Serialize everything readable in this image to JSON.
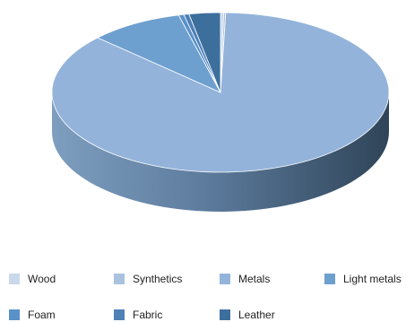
{
  "chart_data": {
    "type": "pie",
    "style": "3d",
    "title": "",
    "legend_position": "bottom",
    "slices": [
      {
        "label": "Wood",
        "value": 0.3,
        "color": "#c9d8ea"
      },
      {
        "label": "Synthetics",
        "value": 0.2,
        "color": "#a9c2e0"
      },
      {
        "label": "Metals",
        "value": 86.5,
        "color": "#93b3da"
      },
      {
        "label": "Light metals",
        "value": 9.0,
        "color": "#6d9fcf"
      },
      {
        "label": "Foam",
        "value": 0.5,
        "color": "#5a91c8"
      },
      {
        "label": "Fabric",
        "value": 0.5,
        "color": "#4f81b7"
      },
      {
        "label": "Leather",
        "value": 3.0,
        "color": "#3d6f9d"
      }
    ]
  }
}
